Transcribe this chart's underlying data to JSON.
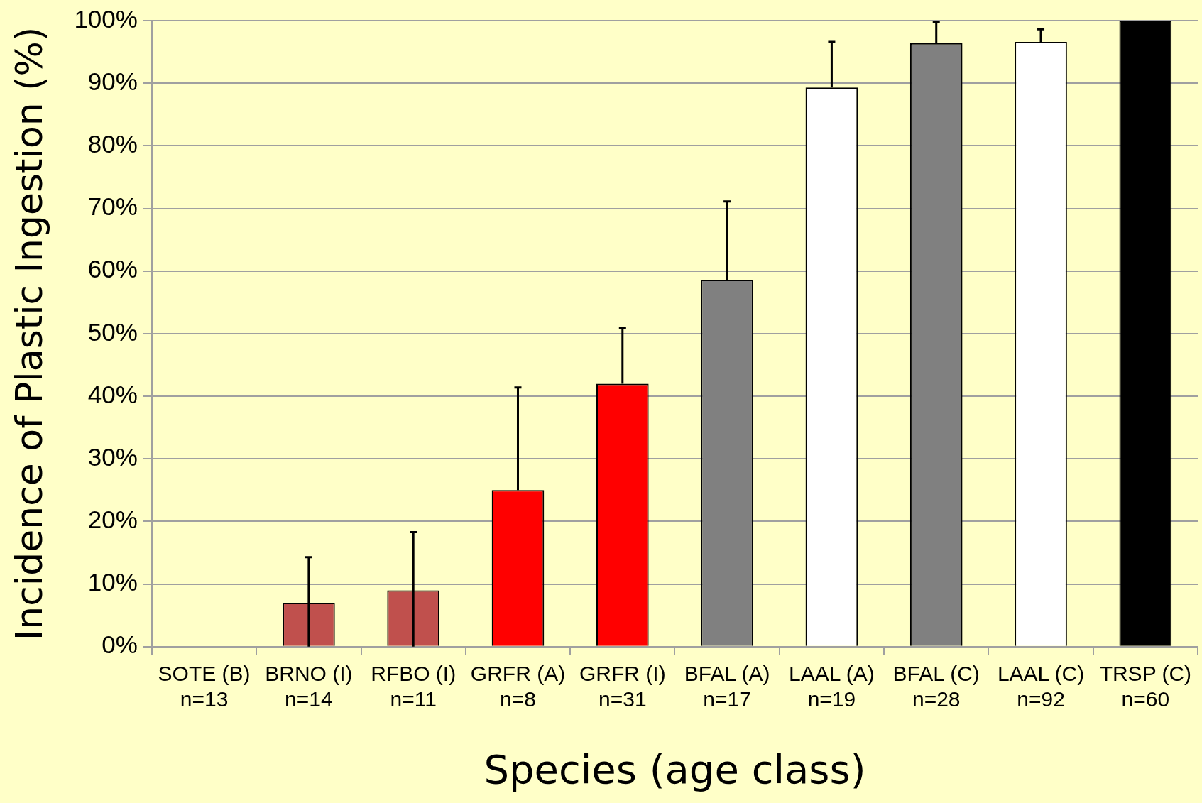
{
  "chart_data": {
    "type": "bar",
    "xlabel": "Species (age class)",
    "ylabel": "Incidence of Plastic Ingestion (%)",
    "categories": [
      "SOTE (B)\nn=13",
      "BRNO (I)\nn=14",
      "RFBO (I)\nn=11",
      "GRFR (A)\nn=8",
      "GRFR (I)\nn=31",
      "BFAL (A)\nn=17",
      "LAAL (A)\nn=19",
      "BFAL (C)\nn=28",
      "LAAL (C)\nn=92",
      "TRSP (C)\nn=60"
    ],
    "values": [
      0,
      7,
      9,
      25,
      42,
      58.6,
      89.3,
      96.4,
      96.6,
      100
    ],
    "colors": [
      "#808080",
      "#c0504d",
      "#c0504d",
      "#ff0000",
      "#ff0000",
      "#808080",
      "#ffffff",
      "#808080",
      "#ffffff",
      "#000000"
    ],
    "errors": [
      null,
      [
        0,
        14.3
      ],
      [
        0,
        18.3
      ],
      [
        25,
        41.4
      ],
      [
        42,
        50.9
      ],
      [
        58.6,
        71.1
      ],
      [
        89.3,
        96.6
      ],
      [
        96.4,
        99.8
      ],
      [
        96.6,
        98.6
      ],
      null
    ],
    "ylim": [
      0,
      100
    ],
    "yticks": [
      {
        "value": 0,
        "label": "0%"
      },
      {
        "value": 10,
        "label": "10%"
      },
      {
        "value": 20,
        "label": "20%"
      },
      {
        "value": 30,
        "label": "30%"
      },
      {
        "value": 40,
        "label": "40%"
      },
      {
        "value": 50,
        "label": "50%"
      },
      {
        "value": 60,
        "label": "60%"
      },
      {
        "value": 70,
        "label": "70%"
      },
      {
        "value": 80,
        "label": "80%"
      },
      {
        "value": 90,
        "label": "90%"
      },
      {
        "value": 100,
        "label": "100%"
      }
    ],
    "grid": "y",
    "legend": false
  }
}
